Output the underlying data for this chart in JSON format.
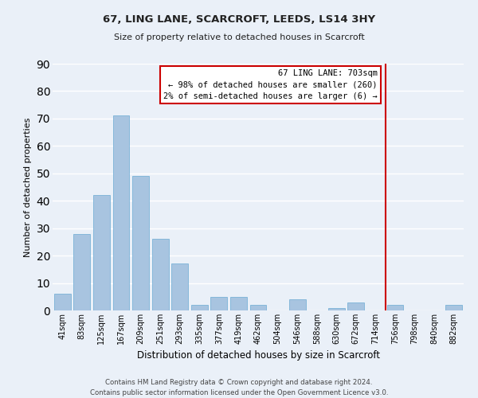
{
  "title1": "67, LING LANE, SCARCROFT, LEEDS, LS14 3HY",
  "title2": "Size of property relative to detached houses in Scarcroft",
  "xlabel": "Distribution of detached houses by size in Scarcroft",
  "ylabel": "Number of detached properties",
  "footer1": "Contains HM Land Registry data © Crown copyright and database right 2024.",
  "footer2": "Contains public sector information licensed under the Open Government Licence v3.0.",
  "categories": [
    "41sqm",
    "83sqm",
    "125sqm",
    "167sqm",
    "209sqm",
    "251sqm",
    "293sqm",
    "335sqm",
    "377sqm",
    "419sqm",
    "462sqm",
    "504sqm",
    "546sqm",
    "588sqm",
    "630sqm",
    "672sqm",
    "714sqm",
    "756sqm",
    "798sqm",
    "840sqm",
    "882sqm"
  ],
  "values": [
    6,
    28,
    42,
    71,
    49,
    26,
    17,
    2,
    5,
    5,
    2,
    0,
    4,
    0,
    1,
    3,
    0,
    2,
    0,
    0,
    2
  ],
  "bar_color": "#a8c4e0",
  "bar_edge_color": "#6aaad4",
  "bg_color": "#eaf0f8",
  "grid_color": "#ffffff",
  "annotation_line_index": 16.5,
  "annotation_box_text": "67 LING LANE: 703sqm\n← 98% of detached houses are smaller (260)\n2% of semi-detached houses are larger (6) →",
  "annotation_box_color": "#cc0000",
  "ylim": [
    0,
    90
  ],
  "yticks": [
    0,
    10,
    20,
    30,
    40,
    50,
    60,
    70,
    80,
    90
  ]
}
